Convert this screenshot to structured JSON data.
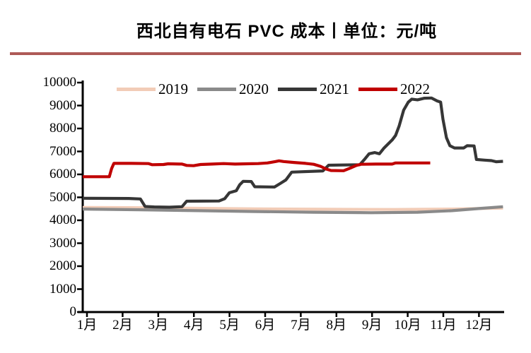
{
  "title": "西北自有电石 PVC 成本丨单位：元/吨",
  "styles": {
    "rule_color": "#AE5A57",
    "axis_color": "#000000"
  },
  "chart_data": {
    "type": "line",
    "title": "西北自有电石 PVC 成本",
    "unit": "元/吨",
    "grid": false,
    "legend_position": "top",
    "x_unit": "day_of_year",
    "x_range": [
      0,
      365
    ],
    "x_categories": [
      "1月",
      "2月",
      "3月",
      "4月",
      "5月",
      "6月",
      "7月",
      "8月",
      "9月",
      "10月",
      "11月",
      "12月"
    ],
    "y_axis": {
      "min": 0,
      "max": 10000,
      "step": 1000,
      "tick_labels": [
        "10000",
        "9000",
        "8000",
        "7000",
        "6000",
        "5000",
        "4000",
        "3000",
        "2000",
        "1000",
        "0"
      ]
    },
    "series": [
      {
        "name": "2019",
        "color": "#F2CCB7",
        "points": [
          [
            0,
            4560
          ],
          [
            40,
            4550
          ],
          [
            90,
            4530
          ],
          [
            150,
            4500
          ],
          [
            210,
            4480
          ],
          [
            270,
            4470
          ],
          [
            320,
            4490
          ],
          [
            350,
            4520
          ],
          [
            364,
            4530
          ]
        ]
      },
      {
        "name": "2020",
        "color": "#8A8A8A",
        "points": [
          [
            0,
            4490
          ],
          [
            50,
            4460
          ],
          [
            100,
            4420
          ],
          [
            150,
            4380
          ],
          [
            200,
            4350
          ],
          [
            250,
            4330
          ],
          [
            290,
            4350
          ],
          [
            320,
            4420
          ],
          [
            345,
            4520
          ],
          [
            364,
            4590
          ]
        ]
      },
      {
        "name": "2021",
        "color": "#363636",
        "points": [
          [
            0,
            4960
          ],
          [
            40,
            4950
          ],
          [
            50,
            4930
          ],
          [
            54,
            4600
          ],
          [
            62,
            4580
          ],
          [
            75,
            4570
          ],
          [
            86,
            4590
          ],
          [
            90,
            4830
          ],
          [
            118,
            4840
          ],
          [
            123,
            4940
          ],
          [
            127,
            5200
          ],
          [
            133,
            5290
          ],
          [
            136,
            5550
          ],
          [
            139,
            5700
          ],
          [
            146,
            5690
          ],
          [
            149,
            5460
          ],
          [
            166,
            5450
          ],
          [
            171,
            5600
          ],
          [
            176,
            5760
          ],
          [
            181,
            6100
          ],
          [
            208,
            6150
          ],
          [
            213,
            6400
          ],
          [
            240,
            6420
          ],
          [
            244,
            6650
          ],
          [
            248,
            6900
          ],
          [
            253,
            6950
          ],
          [
            257,
            6900
          ],
          [
            261,
            7150
          ],
          [
            268,
            7500
          ],
          [
            271,
            7700
          ],
          [
            274,
            8100
          ],
          [
            278,
            8800
          ],
          [
            282,
            9150
          ],
          [
            285,
            9280
          ],
          [
            290,
            9250
          ],
          [
            296,
            9320
          ],
          [
            302,
            9330
          ],
          [
            307,
            9200
          ],
          [
            310,
            9150
          ],
          [
            312,
            8400
          ],
          [
            315,
            7600
          ],
          [
            318,
            7250
          ],
          [
            322,
            7150
          ],
          [
            330,
            7150
          ],
          [
            333,
            7250
          ],
          [
            339,
            7240
          ],
          [
            341,
            6650
          ],
          [
            348,
            6620
          ],
          [
            354,
            6600
          ],
          [
            358,
            6550
          ],
          [
            364,
            6570
          ]
        ]
      },
      {
        "name": "2022",
        "color": "#C00000",
        "points": [
          [
            0,
            5900
          ],
          [
            23,
            5900
          ],
          [
            25,
            6250
          ],
          [
            27,
            6480
          ],
          [
            42,
            6480
          ],
          [
            57,
            6470
          ],
          [
            60,
            6420
          ],
          [
            70,
            6430
          ],
          [
            74,
            6460
          ],
          [
            86,
            6450
          ],
          [
            90,
            6390
          ],
          [
            96,
            6380
          ],
          [
            102,
            6430
          ],
          [
            112,
            6450
          ],
          [
            122,
            6470
          ],
          [
            132,
            6450
          ],
          [
            142,
            6460
          ],
          [
            152,
            6470
          ],
          [
            160,
            6500
          ],
          [
            167,
            6560
          ],
          [
            170,
            6590
          ],
          [
            174,
            6560
          ],
          [
            183,
            6520
          ],
          [
            193,
            6480
          ],
          [
            200,
            6440
          ],
          [
            206,
            6350
          ],
          [
            211,
            6230
          ],
          [
            215,
            6170
          ],
          [
            226,
            6160
          ],
          [
            231,
            6260
          ],
          [
            237,
            6390
          ],
          [
            241,
            6440
          ],
          [
            254,
            6450
          ],
          [
            268,
            6450
          ],
          [
            271,
            6500
          ],
          [
            301,
            6500
          ]
        ]
      }
    ]
  }
}
